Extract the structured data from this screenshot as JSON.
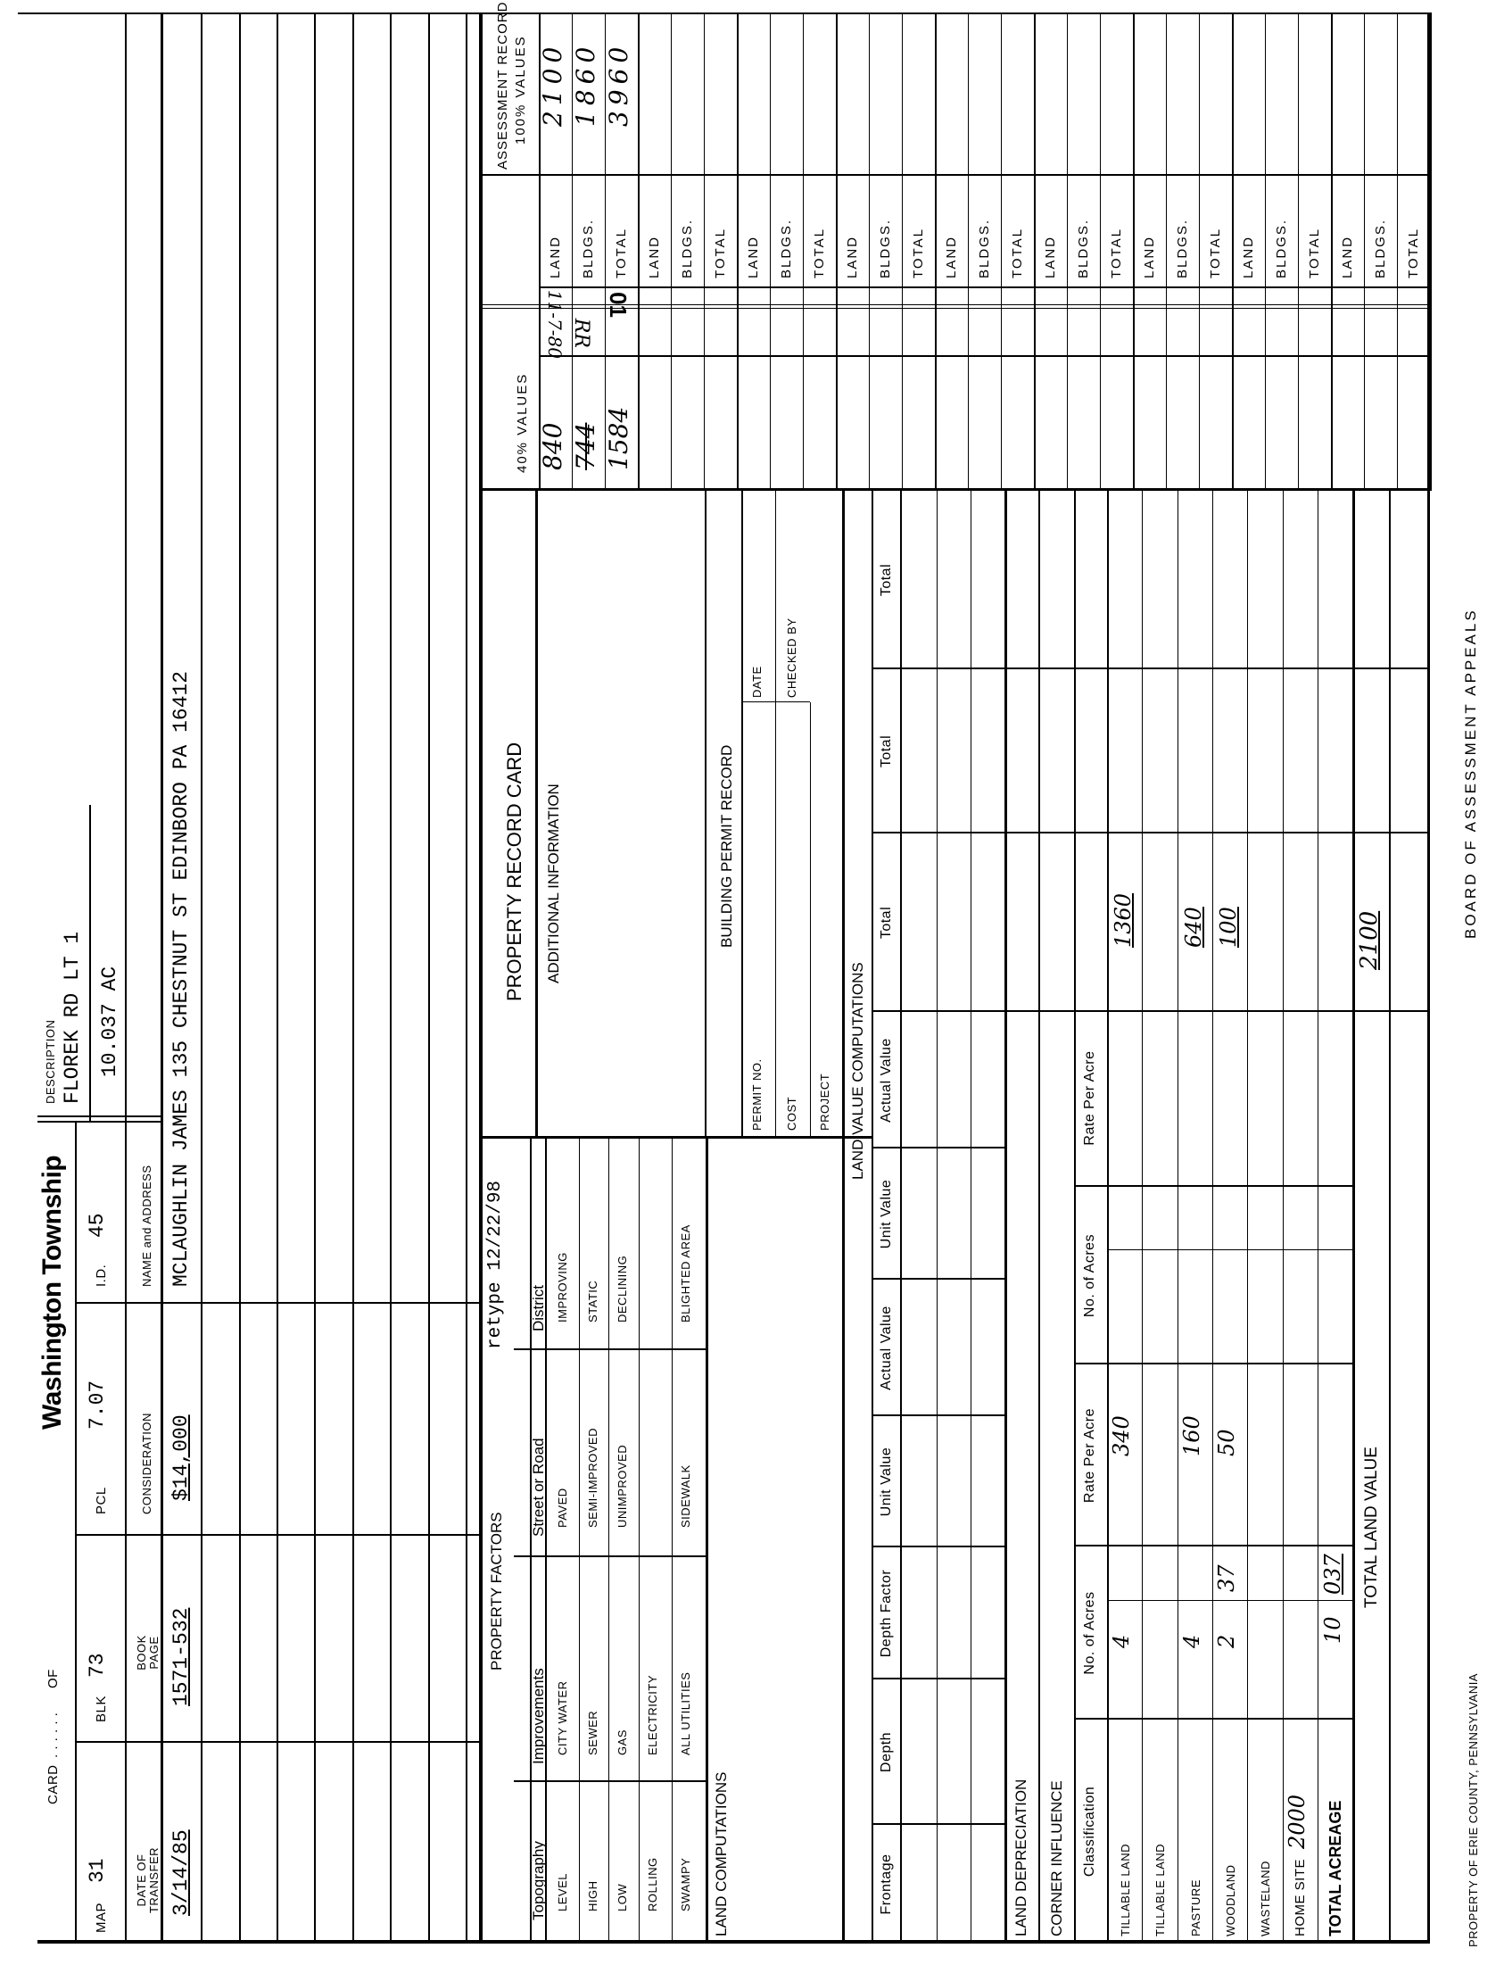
{
  "header": {
    "card_label": "CARD",
    "of_label": "OF",
    "township": "Washington Township",
    "map_label": "MAP",
    "map": "31",
    "blk_label": "BLK",
    "blk": "73",
    "pcl_label": "PCL",
    "pcl": "7.07",
    "id_label": "I.D.",
    "id": "45",
    "description_label": "DESCRIPTION",
    "description": "FLOREK RD LT 1",
    "acreage": "10.037 AC"
  },
  "transfers": {
    "columns": [
      "DATE OF TRANSFER",
      "BOOK PAGE",
      "CONSIDERATION",
      "NAME and ADDRESS"
    ],
    "rows": [
      {
        "date": "3/14/85",
        "book_page": "1571-532",
        "consideration": "$14,000",
        "name_address": "MCLAUGHLIN JAMES 135 CHESTNUT ST EDINBORO PA 16412"
      }
    ]
  },
  "property_factors": {
    "title": "PROPERTY FACTORS",
    "retype": "retype 12/22/98",
    "columns": [
      "Topography",
      "Improvements",
      "Street or Road",
      "District"
    ],
    "rows": [
      [
        "LEVEL",
        "CITY WATER",
        "PAVED",
        "IMPROVING"
      ],
      [
        "HIGH",
        "SEWER",
        "SEMI-IMPROVED",
        "STATIC"
      ],
      [
        "LOW",
        "GAS",
        "UNIMPROVED",
        "DECLINING"
      ],
      [
        "ROLLING",
        "ELECTRICITY",
        "",
        ""
      ],
      [
        "SWAMPY",
        "ALL UTILITIES",
        "SIDEWALK",
        "BLIGHTED AREA"
      ]
    ]
  },
  "land_computations_label": "LAND COMPUTATIONS",
  "record_card": {
    "title": "PROPERTY RECORD CARD",
    "additional_info": "ADDITIONAL INFORMATION",
    "permit": {
      "title": "BUILDING PERMIT RECORD",
      "permit_no": "PERMIT NO.",
      "cost": "COST",
      "project": "PROJECT",
      "date": "DATE",
      "checked_by": "CHECKED BY"
    }
  },
  "land_value": {
    "title": "LAND VALUE COMPUTATIONS",
    "columns": [
      "Frontage",
      "Depth",
      "Depth Factor",
      "Unit Value",
      "Actual Value",
      "Unit Value",
      "Actual Value",
      "Total",
      "Total",
      "Total"
    ]
  },
  "classification": {
    "land_depreciation": "LAND DEPRECIATION",
    "corner_influence": "CORNER INFLUENCE",
    "columns": [
      "Classification",
      "No. of Acres",
      "Rate Per Acre",
      "No. of Acres",
      "Rate Per Acre"
    ],
    "rows": [
      {
        "label": "TILLABLE LAND",
        "acres_whole": "4",
        "acres_dec": "",
        "rate": "340",
        "total": "1360"
      },
      {
        "label": "TILLABLE LAND",
        "acres_whole": "",
        "acres_dec": "",
        "rate": "",
        "total": ""
      },
      {
        "label": "PASTURE",
        "acres_whole": "4",
        "acres_dec": "",
        "rate": "160",
        "total": "640"
      },
      {
        "label": "WOODLAND",
        "acres_whole": "2",
        "acres_dec": "37",
        "rate": "50",
        "total": "100"
      },
      {
        "label": "WASTELAND",
        "acres_whole": "",
        "acres_dec": "",
        "rate": "",
        "total": ""
      }
    ],
    "home_site_label": "HOME SITE",
    "home_site_value": "2000",
    "total_acreage_label": "TOTAL ACREAGE",
    "total_acreage_whole": "10",
    "total_acreage_dec": "037",
    "total_land_value_label": "TOTAL LAND VALUE",
    "total_land_value": "2100"
  },
  "assessment": {
    "forty_label": "40% VALUES",
    "title": "ASSESSMENT RECORD",
    "hundred_label": "100% VALUES",
    "row_labels": [
      "LAND",
      "BLDGS.",
      "TOTAL"
    ],
    "groups": [
      {
        "forty": [
          "840",
          "744",
          "1584"
        ],
        "hundred": [
          "2100",
          "1860",
          "3960"
        ],
        "note_date": "11-7-80",
        "note_initials": "RR",
        "stamp": "01"
      },
      {},
      {},
      {},
      {},
      {},
      {},
      {},
      {}
    ]
  },
  "footer": {
    "board": "BOARD OF ASSESSMENT APPEALS",
    "property_of": "PROPERTY OF ERIE COUNTY, PENNSYLVANIA"
  }
}
